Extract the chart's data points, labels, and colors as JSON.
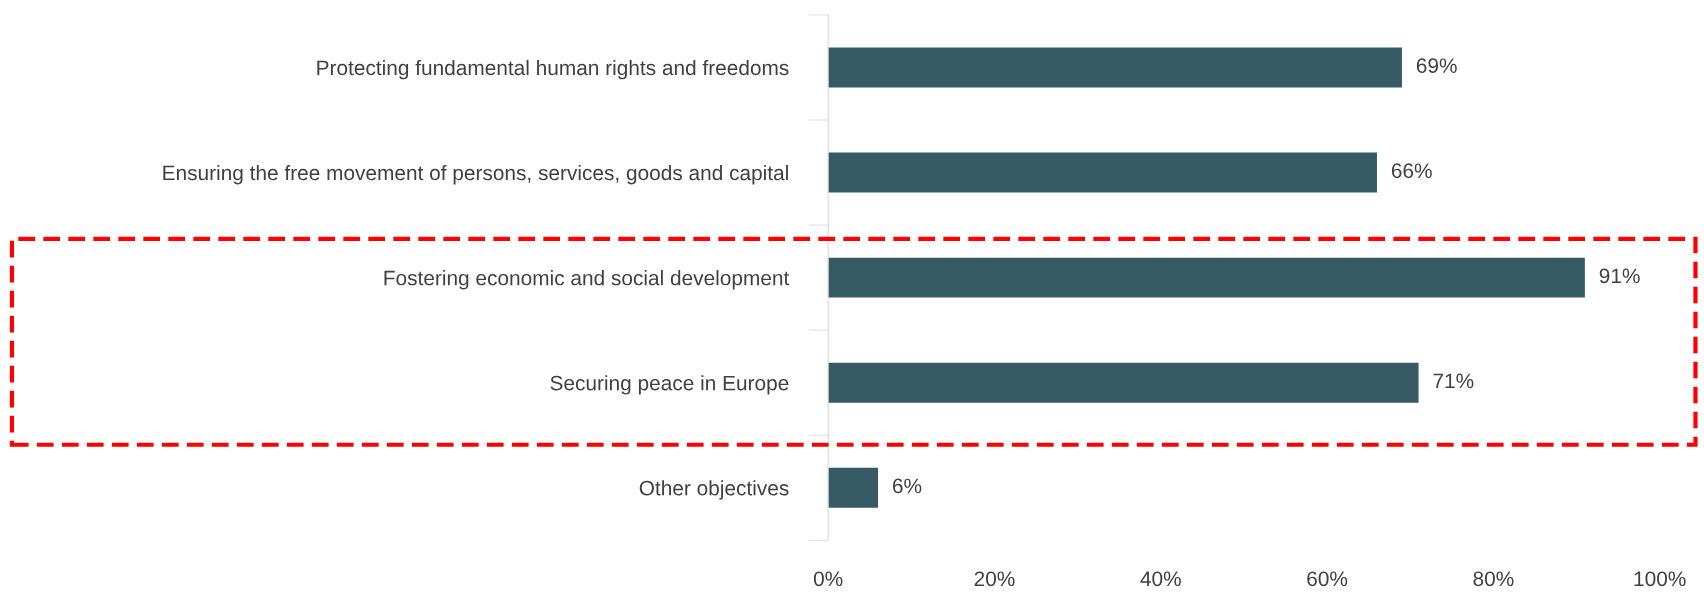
{
  "chart_data": {
    "type": "bar",
    "orientation": "horizontal",
    "categories": [
      "Protecting fundamental human rights and freedoms",
      "Ensuring the free movement of persons, services, goods and capital",
      "Fostering economic and social development",
      "Securing peace in Europe",
      "Other objectives"
    ],
    "values": [
      69,
      66,
      91,
      71,
      6
    ],
    "color": "#365a64",
    "value_labels": [
      "69%",
      "66%",
      "91%",
      "71%",
      "6%"
    ],
    "xlim": [
      0,
      100
    ],
    "xticks": [
      {
        "value": 0,
        "label": "0%"
      },
      {
        "value": 20,
        "label": "20%"
      },
      {
        "value": 40,
        "label": "40%"
      },
      {
        "value": 60,
        "label": "60%"
      },
      {
        "value": 80,
        "label": "80%"
      },
      {
        "value": 100,
        "label": "100%"
      }
    ],
    "grid": false,
    "legend": false
  }
}
